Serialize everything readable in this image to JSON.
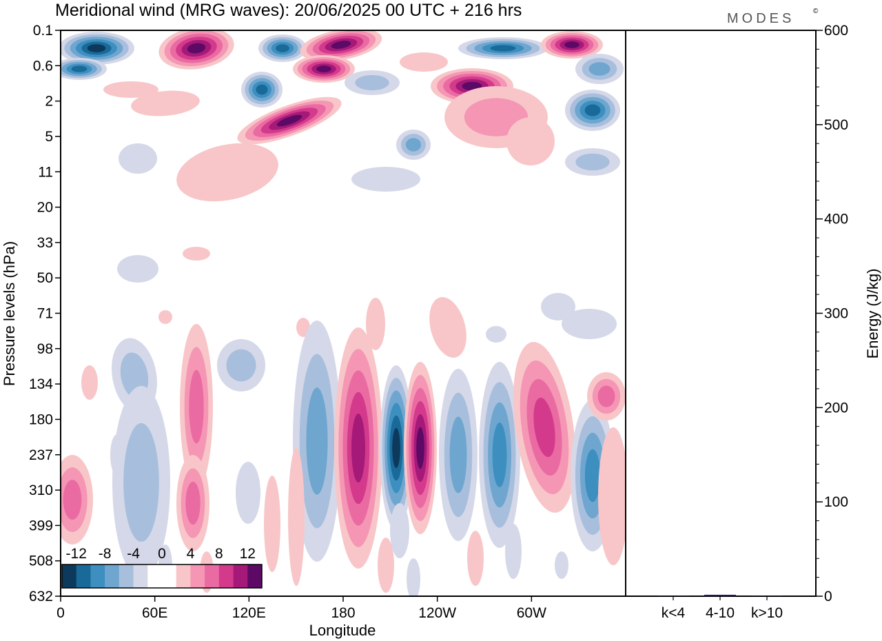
{
  "chart_data": {
    "type": "heatmap",
    "title": "Meridional wind (MRG waves):  20/06/2025  00 UTC  + 216 hrs",
    "brand": "MODES",
    "brand_mark": "©",
    "xlabel": "Longitude",
    "ylabel": "Pressure levels (hPa)",
    "y2label": "Energy (J/kg)",
    "x_ticks": [
      "0",
      "60E",
      "120E",
      "180",
      "120W",
      "60W"
    ],
    "x_tick_degrees": [
      0,
      60,
      120,
      180,
      240,
      300
    ],
    "x_range": [
      0,
      360
    ],
    "y_levels": [
      "0.1",
      "0.6",
      "2",
      "5",
      "11",
      "20",
      "33",
      "50",
      "71",
      "98",
      "134",
      "180",
      "237",
      "310",
      "399",
      "508",
      "632"
    ],
    "energy_ticks": [
      0,
      100,
      200,
      300,
      400,
      500,
      600
    ],
    "energy_range": [
      0,
      600
    ],
    "energy_categories": [
      "k<4",
      "4-10",
      "k>10"
    ],
    "energy_values": [
      0.3,
      1.5,
      0.3
    ],
    "colorbar_ticks": [
      "-12",
      "-8",
      "-4",
      "0",
      "4",
      "8",
      "12"
    ],
    "colorbar_colors": [
      "#0d3a5c",
      "#1a6a99",
      "#3d8fc0",
      "#6fa6cf",
      "#a7bfdc",
      "#d5d8e8",
      "#ffffff",
      "#ffffff",
      "#f8c6c8",
      "#f496b4",
      "#ea6aa2",
      "#d43a8c",
      "#a51a78",
      "#5c0a66"
    ],
    "colors": {
      "positive_max": "#5c0a66",
      "negative_max": "#0d3a5c",
      "bar": "#1a1a5c"
    }
  }
}
